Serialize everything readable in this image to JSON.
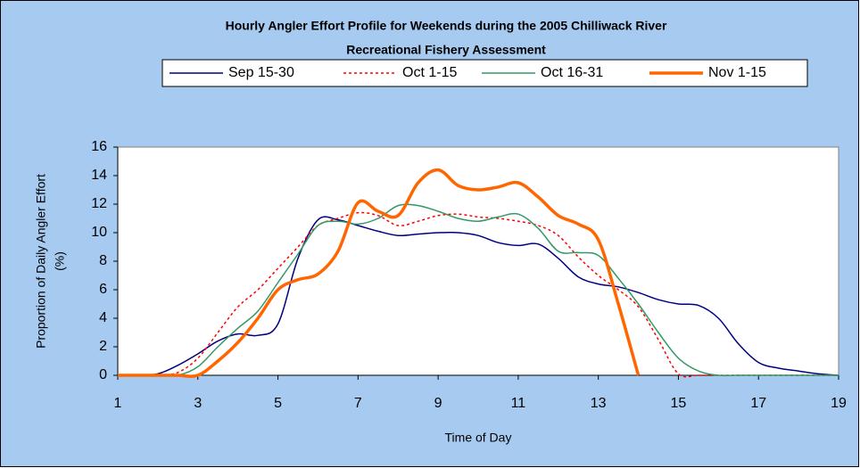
{
  "chart_data": {
    "type": "line",
    "title": [
      "Hourly Angler Effort Profile for Weekends during the 2005 Chilliwack River",
      "Recreational Fishery Assessment"
    ],
    "xlabel": "Time of Day",
    "ylabel": [
      "Proportion of Daily Angler Effort",
      "(%)"
    ],
    "x": [
      1,
      1.5,
      2,
      2.5,
      3,
      3.5,
      4,
      4.5,
      5,
      5.5,
      6,
      6.5,
      7,
      7.5,
      8,
      8.5,
      9,
      9.5,
      10,
      10.5,
      11,
      11.5,
      12,
      12.5,
      13,
      13.5,
      14,
      14.5,
      15,
      15.5,
      16,
      16.5,
      17,
      17.5,
      18,
      18.5,
      19
    ],
    "series": [
      {
        "name": "Sep 15-30",
        "color": "#000080",
        "line_width": 1.5,
        "line_style": "solid",
        "values": [
          0,
          0,
          0.1,
          0.7,
          1.5,
          2.4,
          2.9,
          2.8,
          3.6,
          8.2,
          10.9,
          10.9,
          10.5,
          10.1,
          9.8,
          9.9,
          10,
          10,
          9.8,
          9.3,
          9.1,
          9.2,
          8.2,
          6.9,
          6.4,
          6.2,
          5.8,
          5.3,
          5,
          4.9,
          4,
          2.2,
          0.9,
          0.5,
          0.3,
          0.1,
          0
        ]
      },
      {
        "name": "Oct 1-15",
        "color": "#ff0000",
        "line_width": 1.5,
        "line_style": "dotted",
        "values": [
          0,
          0,
          0,
          0.2,
          1.2,
          3,
          4.8,
          6,
          7.5,
          9,
          10.5,
          11,
          11.4,
          11.2,
          10.5,
          10.8,
          11.2,
          11.3,
          11.1,
          11,
          10.8,
          10.5,
          9.8,
          8.3,
          7,
          6,
          4.8,
          2.5,
          0.1,
          0,
          0,
          0,
          0,
          0,
          0,
          0,
          0
        ]
      },
      {
        "name": "Oct 16-31",
        "color": "#339966",
        "line_width": 1.5,
        "line_style": "solid",
        "values": [
          0,
          0,
          0,
          0,
          0.6,
          2,
          3.3,
          4.5,
          6.5,
          8.5,
          10.5,
          10.8,
          10.6,
          11,
          11.9,
          11.9,
          11.5,
          11,
          10.8,
          11.1,
          11.3,
          10.3,
          8.7,
          8.6,
          8.4,
          6.8,
          5,
          3,
          1.2,
          0.3,
          0,
          0,
          0,
          0,
          0,
          0,
          0
        ]
      },
      {
        "name": "Nov 1-15",
        "color": "#ff6600",
        "line_width": 3.5,
        "line_style": "solid",
        "values": [
          0,
          0,
          0,
          0,
          0,
          1,
          2.3,
          4,
          6,
          6.7,
          7.1,
          8.7,
          12.1,
          11.5,
          11.2,
          13.5,
          14.4,
          13.3,
          13,
          13.2,
          13.5,
          12.5,
          11.2,
          10.6,
          9.5,
          5,
          0,
          null,
          null,
          null,
          null,
          null,
          null,
          null,
          null,
          null,
          null
        ]
      }
    ],
    "xlim": [
      1,
      19
    ],
    "xticks": [
      1,
      3,
      5,
      7,
      9,
      11,
      13,
      15,
      17,
      19
    ],
    "ylim": [
      0,
      16
    ],
    "yticks": [
      0,
      2,
      4,
      6,
      8,
      10,
      12,
      14,
      16
    ],
    "grid": false,
    "legend": "top",
    "background": "#a6caf0"
  }
}
